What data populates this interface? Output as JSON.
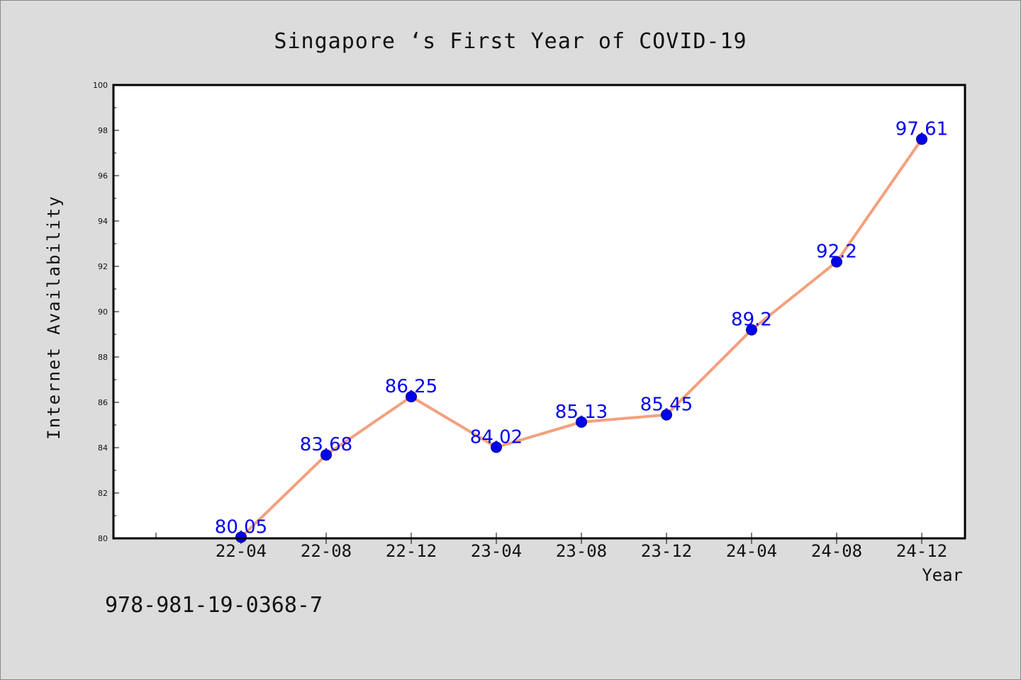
{
  "chart_data": {
    "type": "line",
    "title": "Singapore ‘s First Year of COVID-19",
    "xlabel": "Year",
    "ylabel": "Internet Availability",
    "categories": [
      "22-04",
      "22-08",
      "22-12",
      "23-04",
      "23-08",
      "23-12",
      "24-04",
      "24-08",
      "24-12"
    ],
    "series": [
      {
        "values": [
          80.05,
          83.68,
          86.25,
          84.02,
          85.13,
          85.45,
          89.2,
          92.2,
          97.61
        ],
        "data_labels": [
          "80.05",
          "83.68",
          "86.25",
          "84.02",
          "85.13",
          "85.45",
          "89.2",
          "92.2",
          "97.61"
        ]
      }
    ],
    "ylim": [
      80,
      100
    ],
    "yticks": [
      80,
      82,
      84,
      86,
      88,
      90,
      92,
      94,
      96,
      98,
      100
    ],
    "grid": false,
    "legend": "none",
    "colors": {
      "line": "#f4a07e",
      "marker": "#0000ee",
      "label": "#0000ee",
      "background": "#dcdcdc",
      "plot_background": "#ffffff"
    }
  },
  "footnote": "978-981-19-0368-7"
}
